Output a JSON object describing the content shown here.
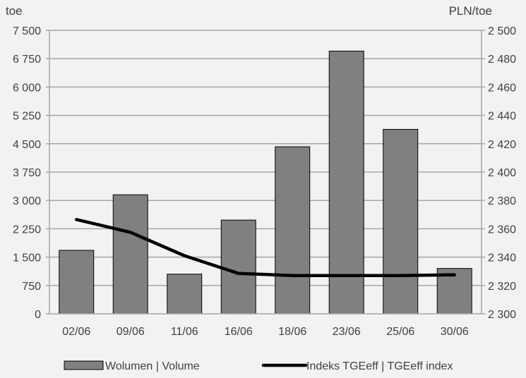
{
  "chart_data": {
    "type": "bar",
    "categories": [
      "02/06",
      "09/06",
      "11/06",
      "16/06",
      "18/06",
      "23/06",
      "25/06",
      "30/06"
    ],
    "series": [
      {
        "name": "Wolumen  |  Volume",
        "type": "bar",
        "axis": "left",
        "values": [
          1680,
          3150,
          1050,
          2480,
          4420,
          6950,
          4880,
          1200
        ]
      },
      {
        "name": "Indeks TGEeff  |  TGEeff index",
        "type": "line",
        "axis": "right",
        "values": [
          2366.5,
          2357.5,
          2341.0,
          2328.5,
          2327.0,
          2327.0,
          2327.0,
          2327.5
        ]
      }
    ],
    "y_left": {
      "label": "toe",
      "ylim": [
        0,
        7500
      ],
      "ticks": [
        0,
        750,
        1500,
        2250,
        3000,
        3750,
        4500,
        5250,
        6000,
        6750,
        7500
      ],
      "tick_labels": [
        "0",
        "750",
        "1 500",
        "2 250",
        "3 000",
        "3 750",
        "4 500",
        "5 250",
        "6 000",
        "6 750",
        "7 500"
      ]
    },
    "y_right": {
      "label": "PLN/toe",
      "ylim": [
        2300,
        2500
      ],
      "ticks": [
        2300,
        2320,
        2340,
        2360,
        2380,
        2400,
        2420,
        2440,
        2460,
        2480,
        2500
      ],
      "tick_labels": [
        "2 300",
        "2 320",
        "2 340",
        "2 360",
        "2 380",
        "2 400",
        "2 420",
        "2 440",
        "2 460",
        "2 480",
        "2 500"
      ]
    },
    "grid": true,
    "legend": "bottom",
    "colors": {
      "bar_fill": "#808080",
      "bar_stroke": "#000000",
      "line": "#000000",
      "grid": "#a6a6a6",
      "background": "#f2f2f2"
    }
  }
}
